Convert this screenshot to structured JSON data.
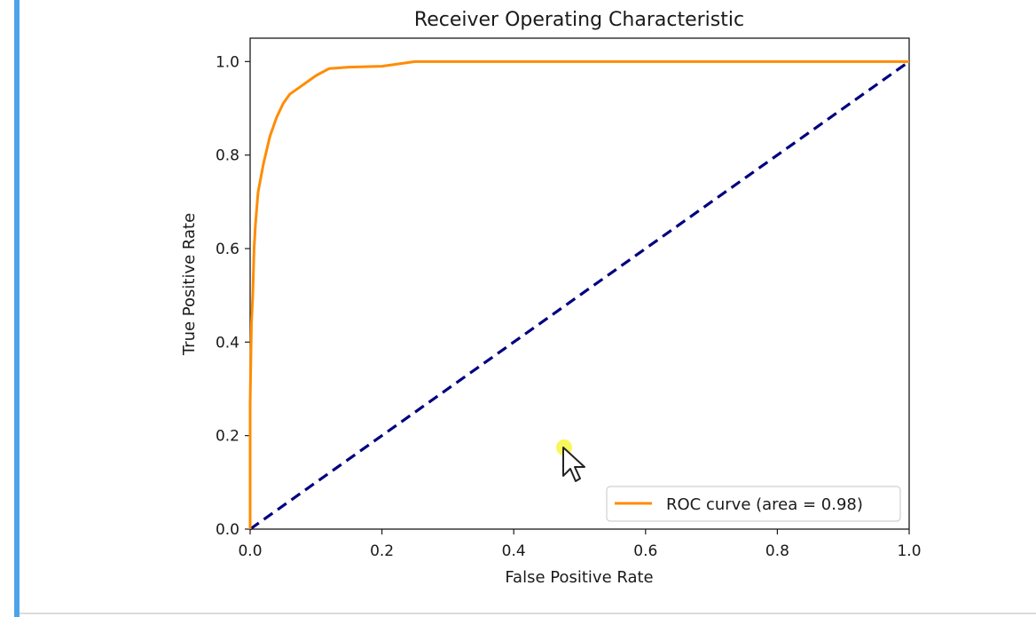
{
  "theme": {
    "accent": "#4da3e8",
    "roc_color": "#ff8c00",
    "baseline_color": "#000080",
    "cursor_highlight": "#f5f532"
  },
  "chart_data": {
    "type": "line",
    "title": "Receiver Operating Characteristic",
    "xlabel": "False Positive Rate",
    "ylabel": "True Positive Rate",
    "xlim": [
      0.0,
      1.0
    ],
    "ylim": [
      0.0,
      1.05
    ],
    "xticks": [
      "0.0",
      "0.2",
      "0.4",
      "0.6",
      "0.8",
      "1.0"
    ],
    "yticks": [
      "0.0",
      "0.2",
      "0.4",
      "0.6",
      "0.8",
      "1.0"
    ],
    "grid": false,
    "legend_position": "lower-right",
    "series": [
      {
        "name": "ROC curve (area = 0.98)",
        "style": "solid",
        "x": [
          0.0,
          0.0,
          0.002,
          0.004,
          0.006,
          0.008,
          0.012,
          0.016,
          0.02,
          0.025,
          0.03,
          0.035,
          0.04,
          0.05,
          0.06,
          0.07,
          0.08,
          0.09,
          0.1,
          0.12,
          0.15,
          0.2,
          0.25,
          0.3,
          0.4,
          0.6,
          0.8,
          1.0
        ],
        "y": [
          0.0,
          0.27,
          0.44,
          0.5,
          0.6,
          0.65,
          0.72,
          0.75,
          0.78,
          0.81,
          0.84,
          0.86,
          0.88,
          0.91,
          0.93,
          0.94,
          0.95,
          0.96,
          0.97,
          0.985,
          0.988,
          0.99,
          1.0,
          1.0,
          1.0,
          1.0,
          1.0,
          1.0
        ]
      },
      {
        "name": "",
        "style": "dashed",
        "x": [
          0.0,
          1.0
        ],
        "y": [
          0.0,
          1.0
        ]
      }
    ]
  }
}
